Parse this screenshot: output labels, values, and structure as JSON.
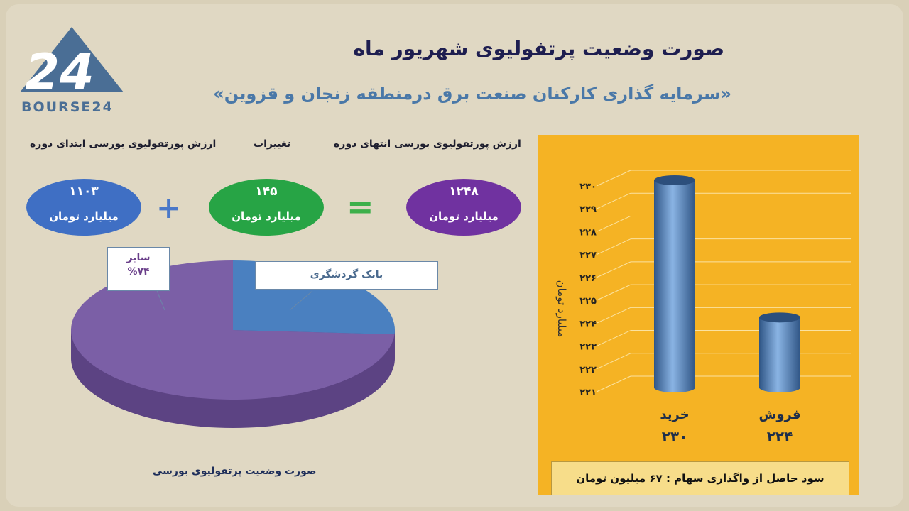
{
  "logo": {
    "text": "BOURSE24",
    "mark": "24"
  },
  "title": "صورت وضعیت پرتفولیوی شهریور ماه",
  "subtitle": "«سرمایه گذاری کارکنان صنعت برق درمنطقه زنجان و قزوین»",
  "labels": {
    "start": "ارزش پورتفولیوی بورسی ابتدای دوره",
    "change": "تغییرات",
    "end": "ارزش پورتفولیوی بورسی انتهای دوره"
  },
  "ovals": {
    "start": {
      "value": "۱۱۰۳",
      "unit": "میلیارد تومان",
      "color": "#3f6fc4"
    },
    "change": {
      "value": "۱۴۵",
      "unit": "میلیارد تومان",
      "color": "#27a445"
    },
    "end": {
      "value": "۱۲۴۸",
      "unit": "میلیارد تومان",
      "color": "#7032a0"
    }
  },
  "operators": {
    "plus": "+",
    "equals": "="
  },
  "pie": {
    "title": "صورت وضعیت پرتفولیوی بورسی",
    "callout_other_name": "سایر",
    "callout_other_pct": "%۷۴",
    "callout_bank": "بانک گردشگری",
    "slices": [
      {
        "name": "سایر",
        "value": 74,
        "color": "#7b5fa6"
      },
      {
        "name": "بانک گردشگری",
        "value": 26,
        "color": "#4a80c0"
      }
    ]
  },
  "chart_data": {
    "type": "bar",
    "categories": [
      "خرید",
      "فروش"
    ],
    "values": [
      230,
      224
    ],
    "value_labels": [
      "۲۳۰",
      "۲۲۴"
    ],
    "ylabel": "میلیارد تومان",
    "ylim": [
      221,
      230
    ],
    "yticks": [
      "۲۲۱",
      "۲۲۲",
      "۲۲۳",
      "۲۲۴",
      "۲۲۵",
      "۲۲۶",
      "۲۲۷",
      "۲۲۸",
      "۲۲۹",
      "۲۳۰"
    ],
    "grid": true,
    "bar_color": "#4a78b0",
    "background": "#f5b324"
  },
  "profit": "سود حاصل از واگذاری سهام :  ۶۷ میلیون تومان"
}
